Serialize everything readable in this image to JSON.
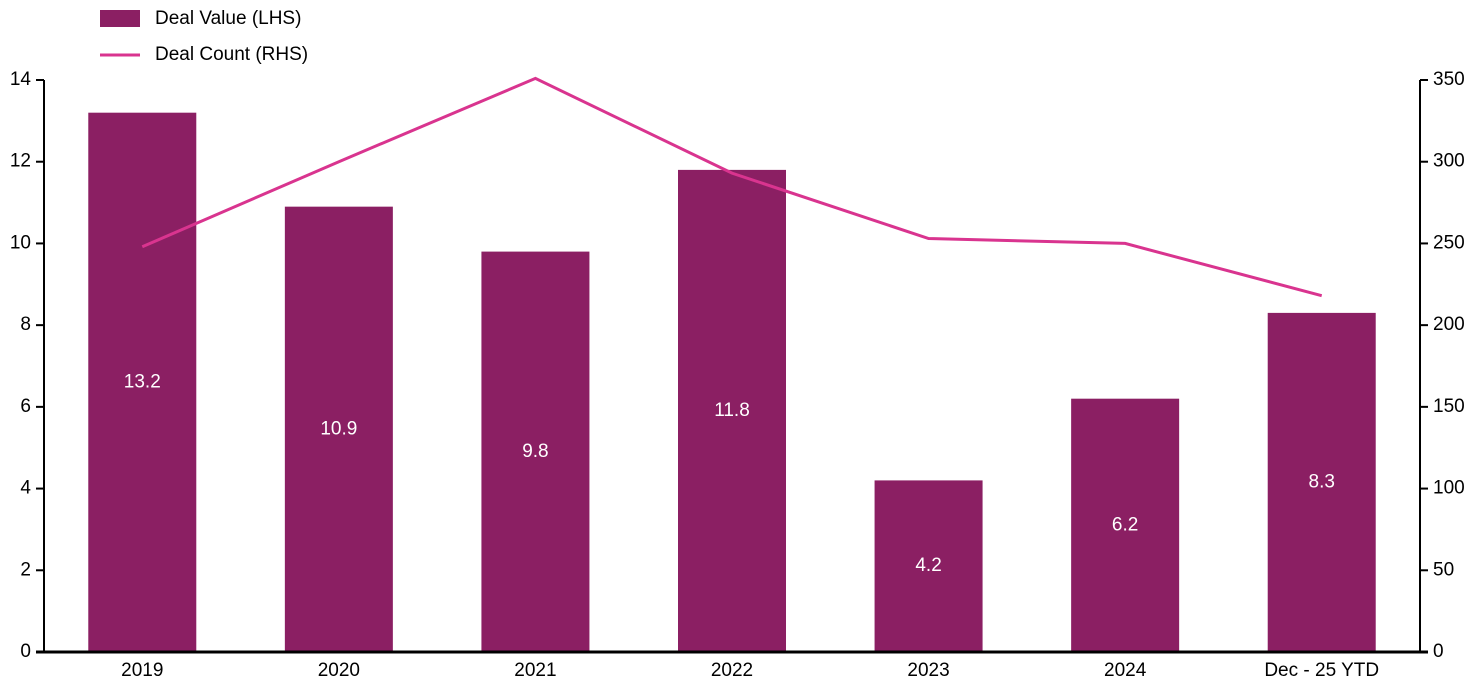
{
  "chart_data": {
    "type": "bar",
    "categories": [
      "2019",
      "2020",
      "2021",
      "2022",
      "2023",
      "2024",
      "Dec - 25 YTD"
    ],
    "series": [
      {
        "name": "Deal Value (LHS)",
        "type": "bar",
        "axis": "left",
        "color": "#8B1F63",
        "values": [
          13.2,
          10.9,
          9.8,
          11.8,
          4.2,
          6.2,
          8.3
        ],
        "data_labels": [
          "13.2",
          "10.9",
          "9.8",
          "11.8",
          "4.2",
          "6.2",
          "8.3"
        ]
      },
      {
        "name": "Deal Count (RHS)",
        "type": "line",
        "axis": "right",
        "color": "#D9348F",
        "values": [
          248,
          300,
          351,
          293,
          253,
          250,
          218
        ]
      }
    ],
    "y_left": {
      "min": 0,
      "max": 14,
      "ticks": [
        "0",
        "2",
        "4",
        "6",
        "8",
        "10",
        "12",
        "14"
      ]
    },
    "y_right": {
      "min": 0,
      "max": 350,
      "ticks": [
        "0",
        "50",
        "100",
        "150",
        "200",
        "250",
        "300",
        "350"
      ]
    },
    "grid": false,
    "legend_position": "top-left",
    "title": "",
    "xlabel": "",
    "ylabel": ""
  }
}
